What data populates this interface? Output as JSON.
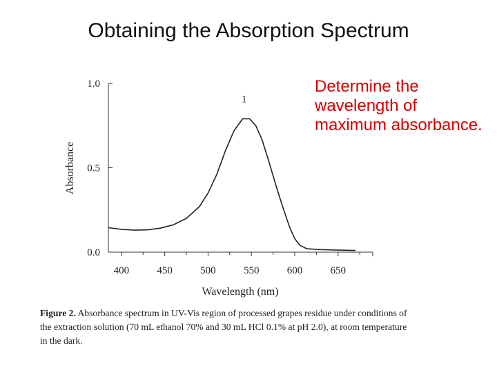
{
  "slide": {
    "title": "Obtaining the Absorption Spectrum",
    "callout": "Determine the wavelength of maximum absorbance.",
    "callout_color": "#d40000"
  },
  "caption": {
    "label": "Figure 2.",
    "text": " Absorbance spectrum in UV-Vis region of processed grapes residue under conditions of the extraction solution (70 mL ethanol 70% and 30 mL HCl 0.1% at pH 2.0), at room temperature in the dark."
  },
  "chart_data": {
    "type": "line",
    "xlabel": "Wavelength (nm)",
    "ylabel": "Absorbance",
    "xlim": [
      385,
      690
    ],
    "ylim": [
      0,
      1.0
    ],
    "x_ticks": [
      400,
      450,
      500,
      550,
      600,
      650
    ],
    "y_ticks": [
      0.0,
      0.5,
      1.0
    ],
    "y_tick_labels": [
      "0.0",
      "0.5",
      "1.0"
    ],
    "grid": false,
    "series": [
      {
        "label": "1",
        "color": "#222222",
        "x": [
          385,
          400,
          415,
          430,
          445,
          460,
          475,
          490,
          500,
          510,
          520,
          530,
          540,
          548,
          555,
          562,
          570,
          578,
          586,
          594,
          600,
          606,
          614,
          620,
          630,
          650,
          670
        ],
        "y": [
          0.145,
          0.135,
          0.13,
          0.132,
          0.142,
          0.162,
          0.2,
          0.27,
          0.35,
          0.46,
          0.6,
          0.72,
          0.79,
          0.79,
          0.75,
          0.67,
          0.54,
          0.4,
          0.27,
          0.15,
          0.08,
          0.04,
          0.02,
          0.018,
          0.015,
          0.012,
          0.01
        ]
      }
    ]
  }
}
